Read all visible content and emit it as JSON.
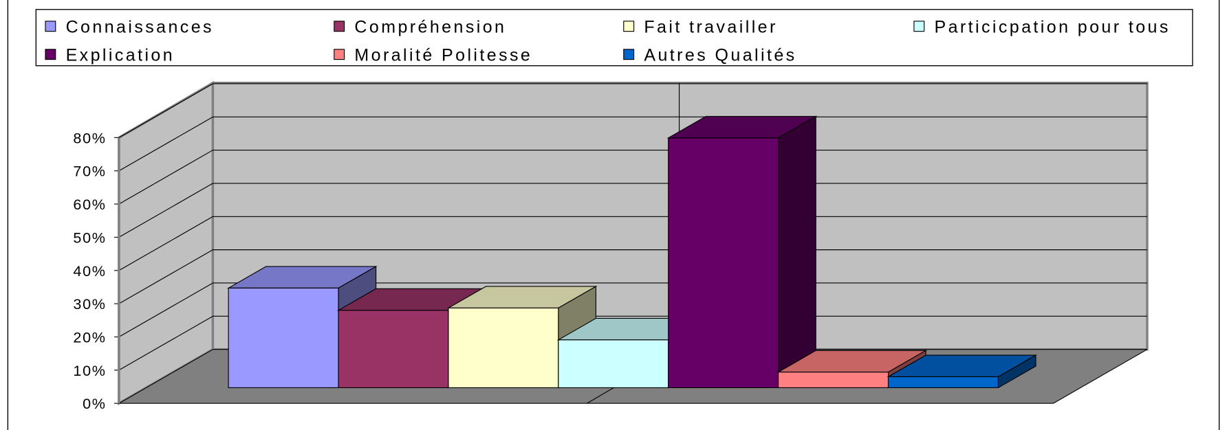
{
  "chart_data": {
    "type": "bar3d",
    "categories": [
      null
    ],
    "series": [
      {
        "name": "Connaissances",
        "color": "#9999ff",
        "values": [
          30
        ]
      },
      {
        "name": "Compréhension",
        "color": "#993366",
        "values": [
          23.3
        ]
      },
      {
        "name": "Fait travailler",
        "color": "#ffffcc",
        "values": [
          24
        ]
      },
      {
        "name": "Particicpation pour tous",
        "color": "#ccffff",
        "values": [
          14.4
        ]
      },
      {
        "name": "Explication",
        "color": "#660066",
        "values": [
          75.2
        ]
      },
      {
        "name": "Moralité Politesse",
        "color": "#ff8080",
        "values": [
          4.7
        ]
      },
      {
        "name": "Autres Qualités",
        "color": "#0066cc",
        "values": [
          3.3
        ]
      }
    ],
    "ylim": [
      0,
      80
    ],
    "yticks": [
      {
        "value": 0,
        "label": "0%"
      },
      {
        "value": 10,
        "label": "10%"
      },
      {
        "value": 20,
        "label": "20%"
      },
      {
        "value": 30,
        "label": "30%"
      },
      {
        "value": 40,
        "label": "40%"
      },
      {
        "value": 50,
        "label": "50%"
      },
      {
        "value": 60,
        "label": "60%"
      },
      {
        "value": 70,
        "label": "70%"
      },
      {
        "value": 80,
        "label": "80%"
      }
    ],
    "grid": true,
    "legend": "top"
  }
}
